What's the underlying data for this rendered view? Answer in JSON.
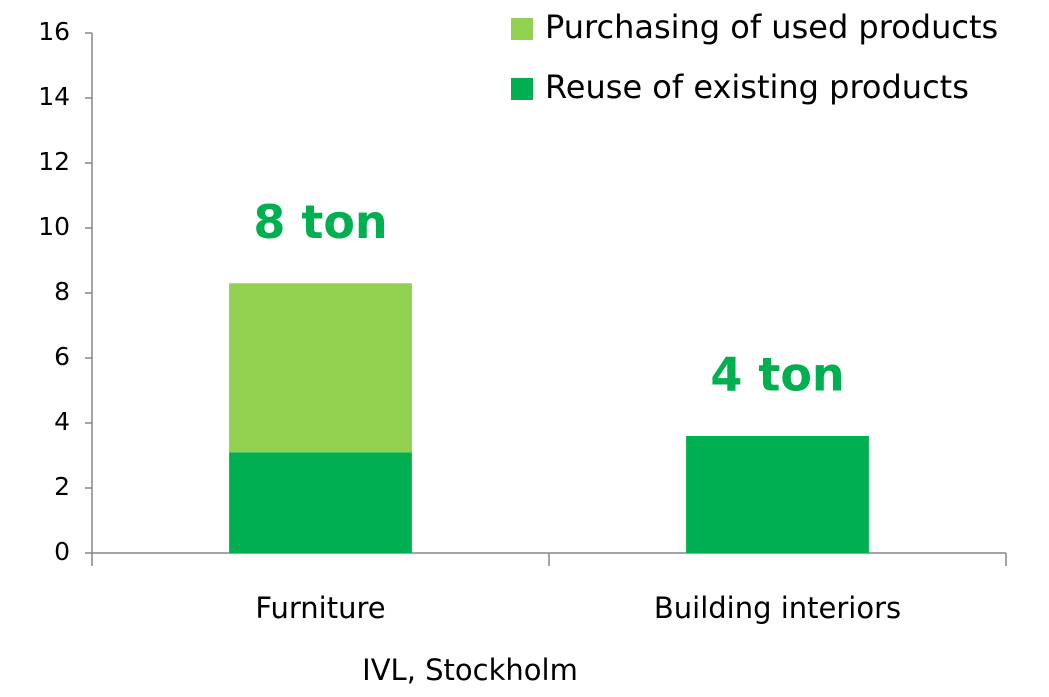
{
  "chart_data": {
    "type": "stacked_bar",
    "x_label": "IVL, Stockholm",
    "categories": [
      "Furniture",
      "Building interiors"
    ],
    "series": [
      {
        "name": "Reuse of existing products",
        "color": "#00b050",
        "values": [
          3.1,
          3.6
        ]
      },
      {
        "name": "Purchasing of used products",
        "color": "#92d050",
        "values": [
          5.2,
          0
        ]
      }
    ],
    "annotations": [
      "8 ton",
      "4 ton"
    ],
    "ylim": [
      0,
      16
    ],
    "yticks": [
      0,
      2,
      4,
      6,
      8,
      10,
      12,
      14,
      16
    ],
    "legend": "top-right"
  }
}
